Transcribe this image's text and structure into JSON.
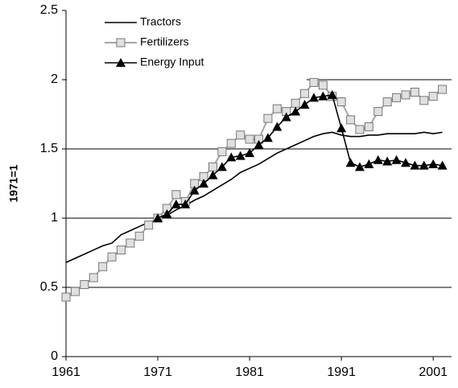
{
  "chart_data": {
    "type": "line",
    "y_label": "1971=1",
    "x": [
      1961,
      1962,
      1963,
      1964,
      1965,
      1966,
      1967,
      1968,
      1969,
      1970,
      1971,
      1972,
      1973,
      1974,
      1975,
      1976,
      1977,
      1978,
      1979,
      1980,
      1981,
      1982,
      1983,
      1984,
      1985,
      1986,
      1987,
      1988,
      1989,
      1990,
      1991,
      1992,
      1993,
      1994,
      1995,
      1996,
      1997,
      1998,
      1999,
      2000,
      2001,
      2002
    ],
    "series": [
      {
        "name": "Tractors",
        "color": "#000000",
        "marker": "none",
        "values": [
          0.68,
          0.71,
          0.74,
          0.77,
          0.8,
          0.82,
          0.88,
          0.91,
          0.94,
          0.97,
          0.99,
          1.02,
          1.06,
          1.09,
          1.13,
          1.16,
          1.2,
          1.24,
          1.28,
          1.33,
          1.36,
          1.39,
          1.43,
          1.47,
          1.5,
          1.53,
          1.56,
          1.59,
          1.61,
          1.62,
          1.6,
          1.59,
          1.59,
          1.6,
          1.6,
          1.61,
          1.61,
          1.61,
          1.61,
          1.62,
          1.61,
          1.62
        ]
      },
      {
        "name": "Fertilizers",
        "color": "#a6a6a6",
        "marker": "square",
        "values": [
          0.43,
          0.47,
          0.52,
          0.57,
          0.65,
          0.72,
          0.77,
          0.82,
          0.87,
          0.95,
          1.0,
          1.07,
          1.17,
          1.12,
          1.25,
          1.3,
          1.37,
          1.48,
          1.54,
          1.6,
          1.57,
          1.57,
          1.72,
          1.79,
          1.77,
          1.83,
          1.9,
          1.98,
          1.96,
          1.88,
          1.84,
          1.71,
          1.64,
          1.66,
          1.77,
          1.84,
          1.87,
          1.89,
          1.91,
          1.85,
          1.88,
          1.93
        ]
      },
      {
        "name": "Energy Input",
        "color": "#000000",
        "marker": "triangle",
        "values": [
          null,
          null,
          null,
          null,
          null,
          null,
          null,
          null,
          null,
          null,
          1.0,
          1.03,
          1.1,
          1.1,
          1.2,
          1.25,
          1.31,
          1.37,
          1.44,
          1.45,
          1.47,
          1.53,
          1.58,
          1.66,
          1.73,
          1.77,
          1.82,
          1.87,
          1.88,
          1.89,
          1.65,
          1.4,
          1.37,
          1.39,
          1.42,
          1.41,
          1.42,
          1.4,
          1.38,
          1.38,
          1.39,
          1.38
        ]
      }
    ],
    "xlim": [
      1961,
      2003
    ],
    "xticks": [
      1961,
      1971,
      1981,
      1991,
      2001
    ],
    "ylim": [
      0,
      2.5
    ],
    "yticks": [
      0,
      0.5,
      1,
      1.5,
      2,
      2.5
    ],
    "grid": true,
    "legend": "upper left"
  }
}
